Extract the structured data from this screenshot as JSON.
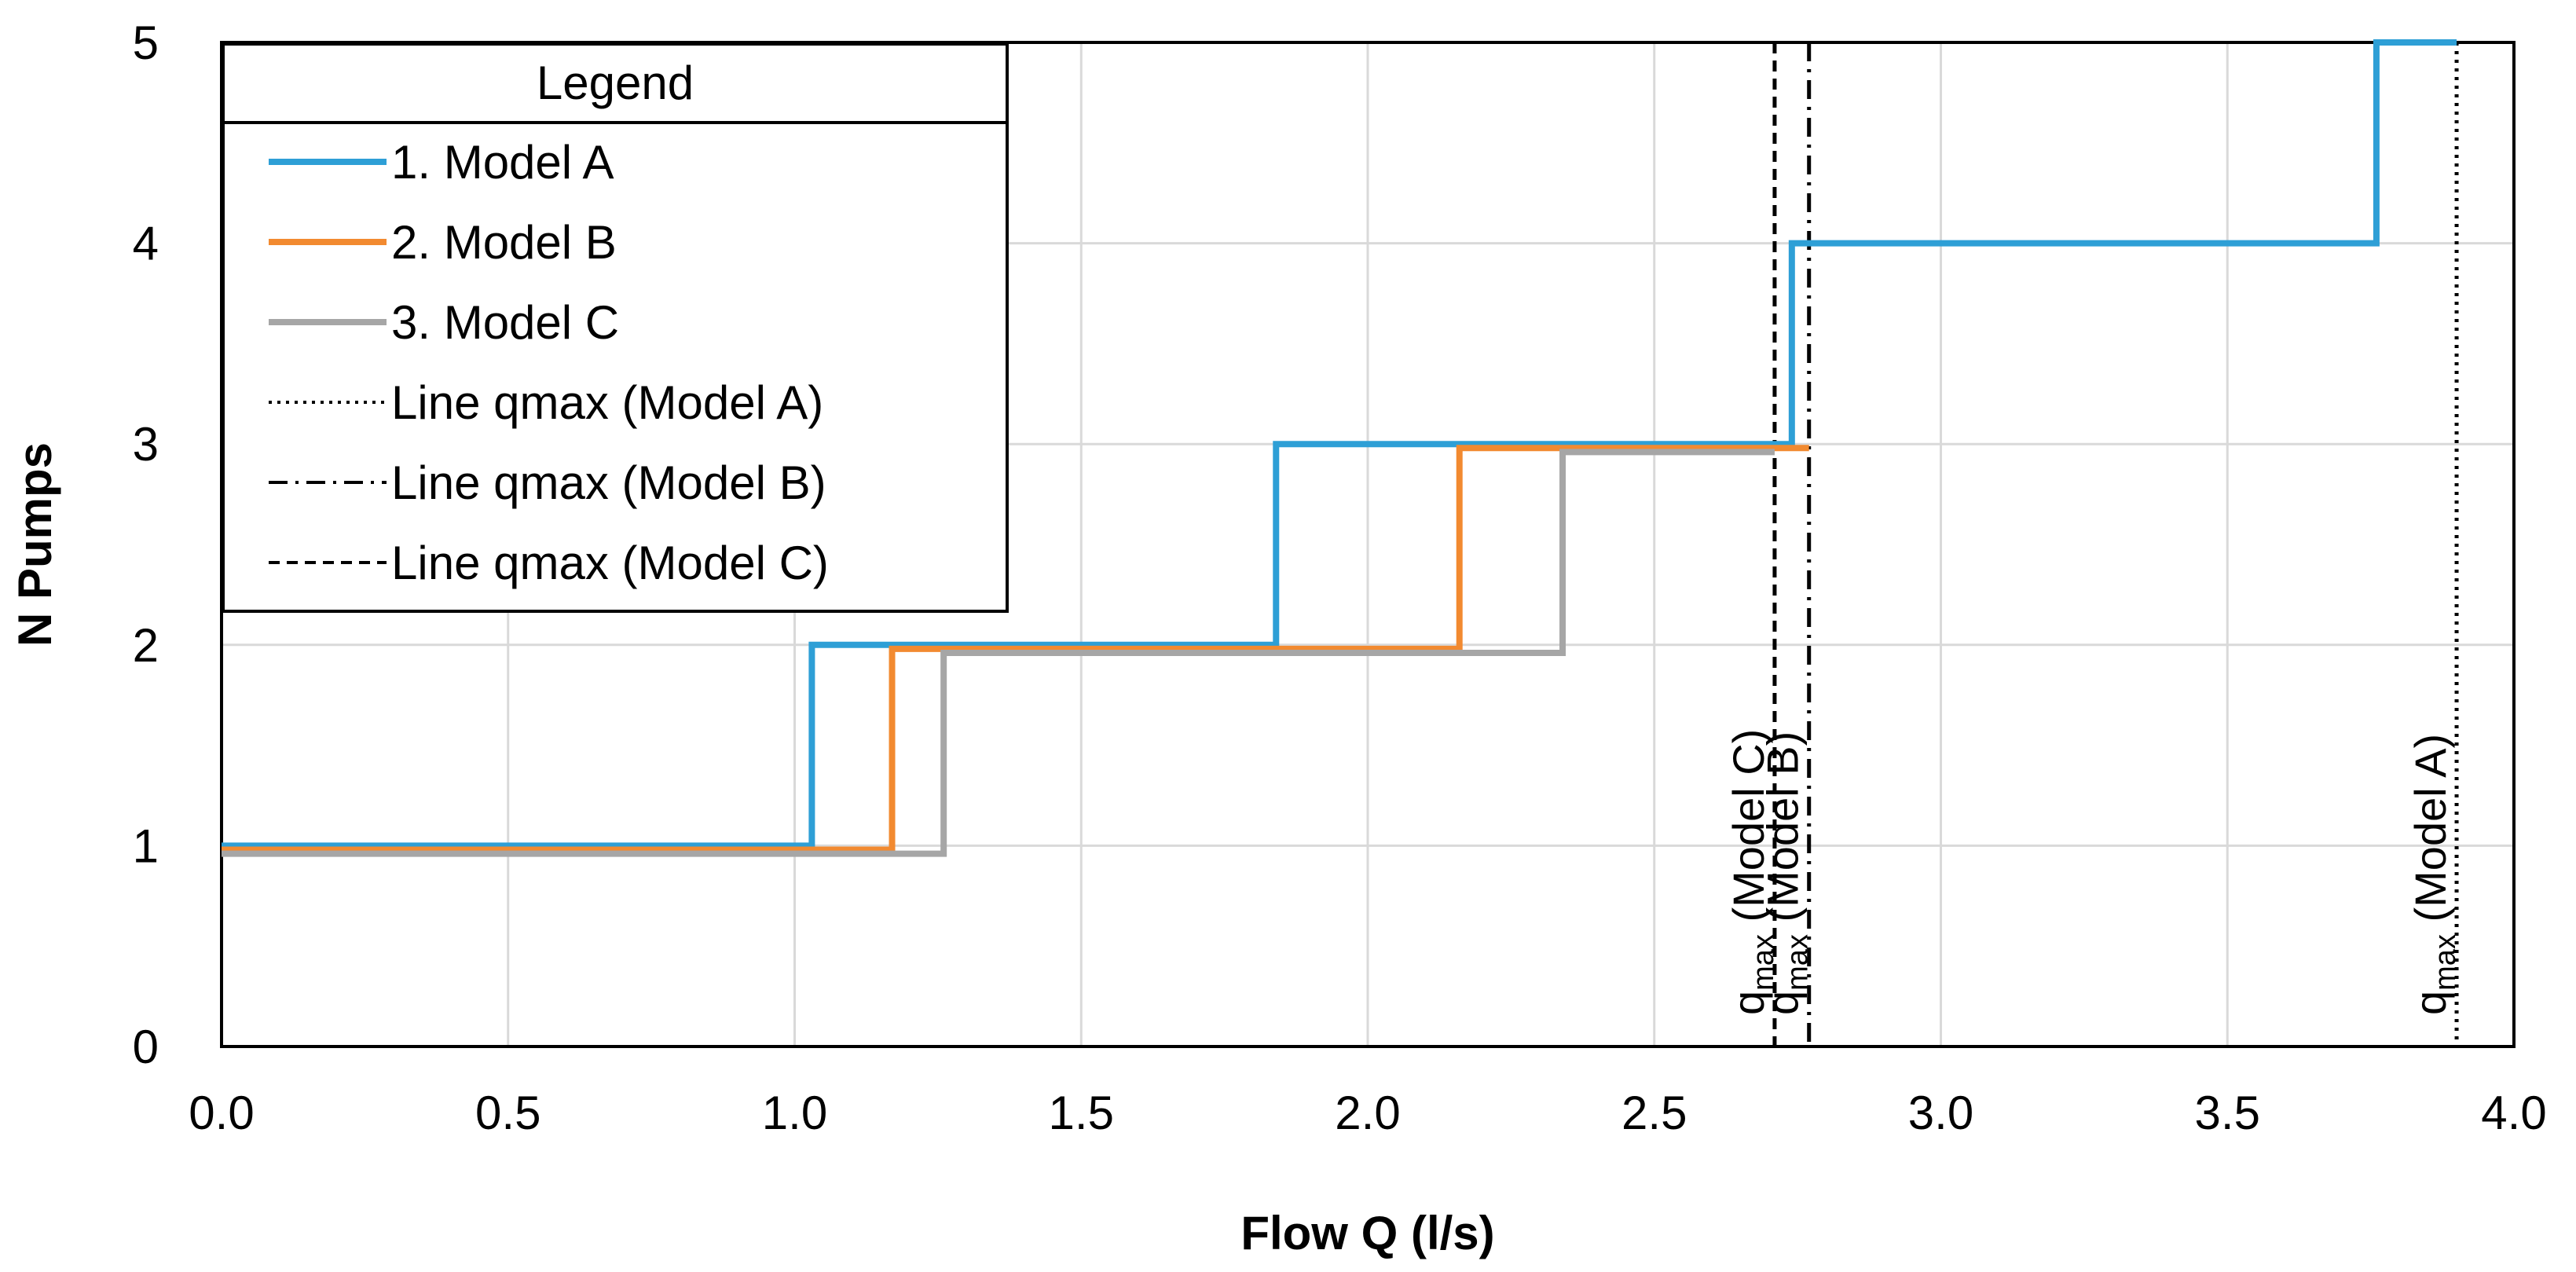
{
  "chart_data": {
    "type": "line",
    "step": true,
    "xlabel": "Flow Q (l/s)",
    "ylabel": "N Pumps",
    "xlim": [
      0,
      4
    ],
    "ylim": [
      0,
      5
    ],
    "x_ticks": [
      "0.0",
      "0.5",
      "1.0",
      "1.5",
      "2.0",
      "2.5",
      "3.0",
      "3.5",
      "4.0"
    ],
    "y_ticks": [
      "0",
      "1",
      "2",
      "3",
      "4",
      "5"
    ],
    "grid": true,
    "legend": {
      "title": "Legend",
      "position": "top-left",
      "entries": [
        {
          "label": "1. Model A",
          "style": "solid",
          "color": "#2E9FD6"
        },
        {
          "label": "2. Model B",
          "style": "solid",
          "color": "#F28A30"
        },
        {
          "label": "3. Model C",
          "style": "solid",
          "color": "#A6A6A6"
        },
        {
          "label": "Line qmax (Model A)",
          "style": "dotted",
          "color": "#000000"
        },
        {
          "label": "Line qmax (Model B)",
          "style": "dashdot",
          "color": "#000000"
        },
        {
          "label": "Line qmax (Model C)",
          "style": "dashed",
          "color": "#000000"
        }
      ]
    },
    "series": [
      {
        "name": "1. Model A",
        "color": "#2E9FD6",
        "points": [
          [
            0,
            1
          ],
          [
            1.03,
            1
          ],
          [
            1.03,
            2
          ],
          [
            1.84,
            2
          ],
          [
            1.84,
            3
          ],
          [
            2.74,
            3
          ],
          [
            2.74,
            4
          ],
          [
            3.76,
            4
          ],
          [
            3.76,
            5
          ],
          [
            3.9,
            5
          ]
        ]
      },
      {
        "name": "2. Model B",
        "color": "#F28A30",
        "points": [
          [
            0,
            0.98
          ],
          [
            1.17,
            0.98
          ],
          [
            1.17,
            1.98
          ],
          [
            2.16,
            1.98
          ],
          [
            2.16,
            2.98
          ],
          [
            2.77,
            2.98
          ]
        ]
      },
      {
        "name": "3. Model C",
        "color": "#A6A6A6",
        "points": [
          [
            0,
            0.96
          ],
          [
            1.26,
            0.96
          ],
          [
            1.26,
            1.96
          ],
          [
            2.34,
            1.96
          ],
          [
            2.34,
            2.96
          ],
          [
            2.71,
            2.96
          ]
        ]
      }
    ],
    "vlines": [
      {
        "name": "Line qmax (Model A)",
        "x": 3.9,
        "style": "dotted",
        "label_main": "q",
        "label_sub": "max",
        "label_text": " (Model A)"
      },
      {
        "name": "Line qmax (Model B)",
        "x": 2.77,
        "style": "dashdot",
        "label_main": "q",
        "label_sub": "max",
        "label_text": " (Model B)"
      },
      {
        "name": "Line qmax (Model C)",
        "x": 2.71,
        "style": "dashed",
        "label_main": "q",
        "label_sub": "max",
        "label_text": " (Model C)"
      }
    ]
  }
}
